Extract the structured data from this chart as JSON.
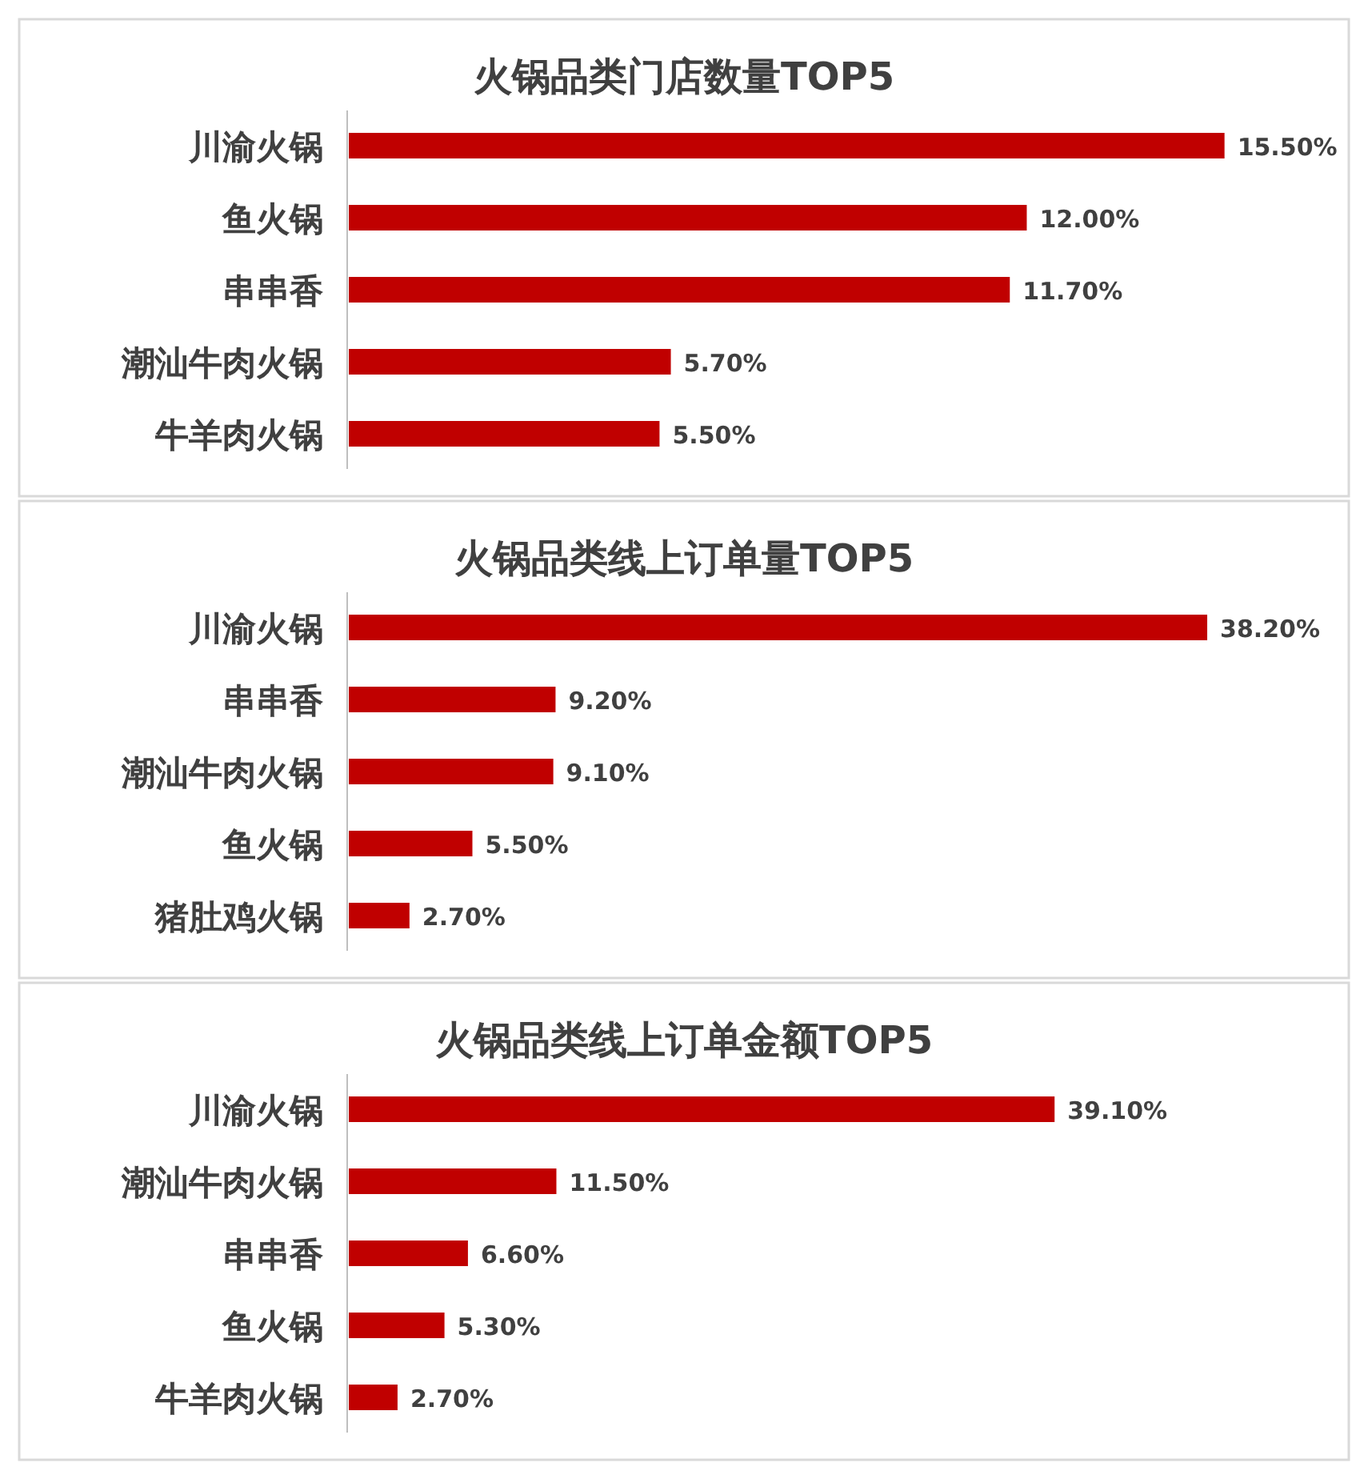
{
  "chart_data": [
    {
      "type": "bar",
      "orientation": "horizontal",
      "title": "火锅品类门店数量TOP5",
      "categories": [
        "川渝火锅",
        "鱼火锅",
        "串串香",
        "潮汕牛肉火锅",
        "牛羊肉火锅"
      ],
      "values": [
        15.5,
        12.0,
        11.7,
        5.7,
        5.5
      ],
      "value_labels": [
        "15.50%",
        "12.00%",
        "11.70%",
        "5.70%",
        "5.50%"
      ],
      "color": "#c00000",
      "xlim": [
        0,
        17.7
      ]
    },
    {
      "type": "bar",
      "orientation": "horizontal",
      "title": "火锅品类线上订单量TOP5",
      "categories": [
        "川渝火锅",
        "串串香",
        "潮汕牛肉火锅",
        "鱼火锅",
        "猪肚鸡火锅"
      ],
      "values": [
        38.2,
        9.2,
        9.1,
        5.5,
        2.7
      ],
      "value_labels": [
        "38.20%",
        "9.20%",
        "9.10%",
        "5.50%",
        "2.70%"
      ],
      "color": "#c00000",
      "xlim": [
        0,
        44.5
      ]
    },
    {
      "type": "bar",
      "orientation": "horizontal",
      "title": "火锅品类线上订单金额TOP5",
      "categories": [
        "川渝火锅",
        "潮汕牛肉火锅",
        "串串香",
        "鱼火锅",
        "牛羊肉火锅"
      ],
      "values": [
        39.1,
        11.5,
        6.6,
        5.3,
        2.7
      ],
      "value_labels": [
        "39.10%",
        "11.50%",
        "6.60%",
        "5.30%",
        "2.70%"
      ],
      "color": "#c00000",
      "xlim": [
        0,
        55.4
      ]
    }
  ]
}
